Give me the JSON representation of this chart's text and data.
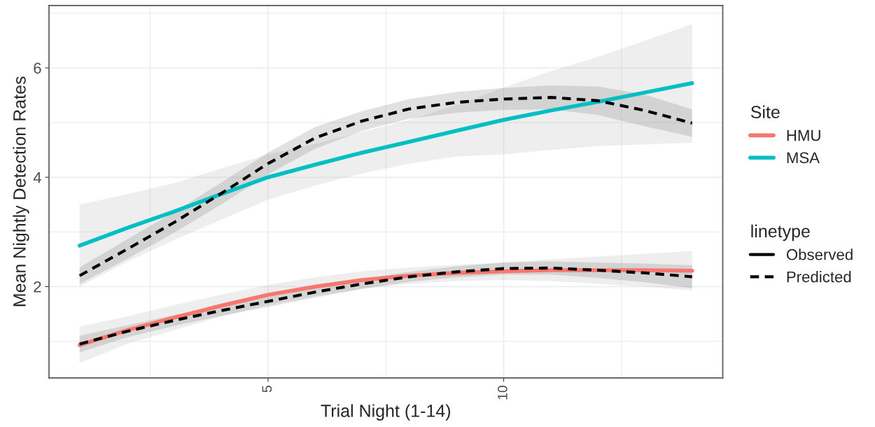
{
  "chart_data": {
    "type": "line",
    "xlabel": "Trial Night (1-14)",
    "ylabel": "Mean Nightly Detection Rates",
    "legend_title": [
      "Site",
      "linetype"
    ],
    "annotations": [
      "Observed"
    ],
    "x": [
      1,
      2,
      3,
      4,
      5,
      6,
      7,
      8,
      9,
      10,
      11,
      12,
      13,
      14
    ],
    "series": [
      {
        "name": "HMU",
        "color": "#f8766d",
        "line_style": "solid",
        "values": [
          0.93,
          1.2,
          1.43,
          1.65,
          1.85,
          2.0,
          2.12,
          2.2,
          2.25,
          2.28,
          2.3,
          2.3,
          2.3,
          2.29
        ],
        "lower": [
          0.6,
          0.95,
          1.2,
          1.45,
          1.67,
          1.83,
          1.96,
          2.05,
          2.1,
          2.12,
          2.1,
          2.05,
          2.0,
          1.93
        ],
        "upper": [
          1.27,
          1.45,
          1.66,
          1.85,
          2.03,
          2.17,
          2.28,
          2.35,
          2.4,
          2.44,
          2.5,
          2.55,
          2.6,
          2.65
        ]
      },
      {
        "name": "MSA",
        "color": "#00bfc4",
        "line_style": "solid",
        "values": [
          2.75,
          3.07,
          3.37,
          3.69,
          4.0,
          4.23,
          4.45,
          4.65,
          4.85,
          5.05,
          5.22,
          5.38,
          5.55,
          5.72
        ],
        "lower": [
          2.0,
          2.45,
          2.85,
          3.22,
          3.59,
          3.85,
          4.07,
          4.25,
          4.38,
          4.42,
          4.5,
          4.57,
          4.6,
          4.63
        ],
        "upper": [
          3.5,
          3.69,
          3.89,
          4.16,
          4.42,
          4.61,
          4.83,
          5.05,
          5.32,
          5.64,
          5.94,
          6.2,
          6.5,
          6.8
        ]
      },
      {
        "name": "Predicted",
        "color": "#000000",
        "line_style": "dashed",
        "values": [
          0.95,
          1.18,
          1.38,
          1.56,
          1.73,
          1.9,
          2.05,
          2.18,
          2.27,
          2.33,
          2.34,
          2.3,
          2.25,
          2.18
        ],
        "lower": [
          0.8,
          1.07,
          1.28,
          1.46,
          1.63,
          1.8,
          1.96,
          2.09,
          2.17,
          2.22,
          2.22,
          2.16,
          2.08,
          1.97
        ],
        "upper": [
          1.1,
          1.29,
          1.48,
          1.66,
          1.83,
          2.0,
          2.14,
          2.27,
          2.37,
          2.44,
          2.46,
          2.44,
          2.42,
          2.39
        ]
      },
      {
        "color": "#000000",
        "line_style": "dashed",
        "values": [
          2.2,
          2.68,
          3.17,
          3.7,
          4.25,
          4.72,
          5.03,
          5.25,
          5.37,
          5.43,
          5.46,
          5.4,
          5.22,
          4.99
        ],
        "lower": [
          2.05,
          2.5,
          2.98,
          3.5,
          4.05,
          4.52,
          4.85,
          5.07,
          5.18,
          5.23,
          5.24,
          5.14,
          4.93,
          4.74
        ],
        "upper": [
          2.35,
          2.86,
          3.36,
          3.9,
          4.45,
          4.92,
          5.21,
          5.43,
          5.56,
          5.63,
          5.68,
          5.66,
          5.51,
          5.24
        ]
      }
    ],
    "xlim": [
      0.35,
      14.65
    ],
    "xticks": [
      5,
      10
    ],
    "ylim": [
      0.33,
      7.14
    ],
    "yticks": [
      2,
      4,
      6
    ],
    "grid": true,
    "legend": "right"
  }
}
